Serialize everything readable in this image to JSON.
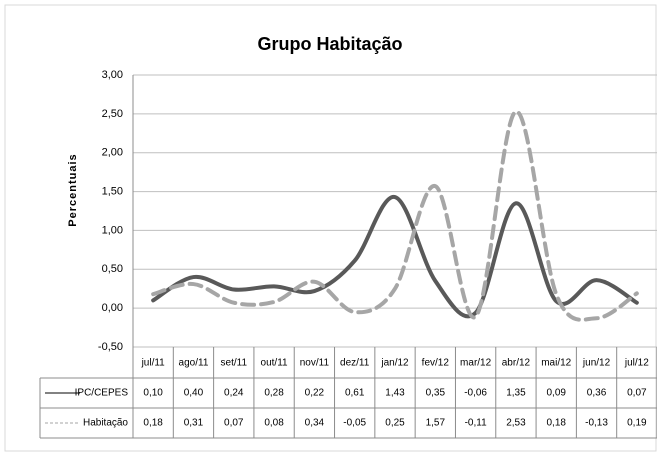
{
  "chart_data": {
    "type": "line",
    "title": "Grupo Habitação",
    "y_label": "Percentuais",
    "categories": [
      "jul/11",
      "ago/11",
      "set/11",
      "out/11",
      "nov/11",
      "dez/11",
      "jan/12",
      "fev/12",
      "mar/12",
      "abr/12",
      "mai/12",
      "jun/12",
      "jul/12"
    ],
    "series": [
      {
        "name": "IPC/CEPES",
        "color": "#595959",
        "dashed": false,
        "values": [
          0.1,
          0.4,
          0.24,
          0.28,
          0.22,
          0.61,
          1.43,
          0.35,
          -0.06,
          1.35,
          0.09,
          0.36,
          0.07
        ],
        "value_labels": [
          "0,10",
          "0,40",
          "0,24",
          "0,28",
          "0,22",
          "0,61",
          "1,43",
          "0,35",
          "-0,06",
          "1,35",
          "0,09",
          "0,36",
          "0,07"
        ]
      },
      {
        "name": "Habitação",
        "color": "#a6a6a6",
        "dashed": true,
        "values": [
          0.18,
          0.31,
          0.07,
          0.08,
          0.34,
          -0.05,
          0.25,
          1.57,
          -0.11,
          2.53,
          0.18,
          -0.13,
          0.19
        ],
        "value_labels": [
          "0,18",
          "0,31",
          "0,07",
          "0,08",
          "0,34",
          "-0,05",
          "0,25",
          "1,57",
          "-0,11",
          "2,53",
          "0,18",
          "-0,13",
          "0,19"
        ]
      }
    ],
    "ylim": [
      -0.5,
      3.0
    ],
    "yticks": [
      {
        "value": -0.5,
        "label": "-0,50"
      },
      {
        "value": 0,
        "label": "0,00"
      },
      {
        "value": 0.5,
        "label": "0,50"
      },
      {
        "value": 1.0,
        "label": "1,00"
      },
      {
        "value": 1.5,
        "label": "1,50"
      },
      {
        "value": 2.0,
        "label": "2,00"
      },
      {
        "value": 2.5,
        "label": "2,50"
      },
      {
        "value": 3.0,
        "label": "3,00"
      }
    ],
    "grid": true
  }
}
